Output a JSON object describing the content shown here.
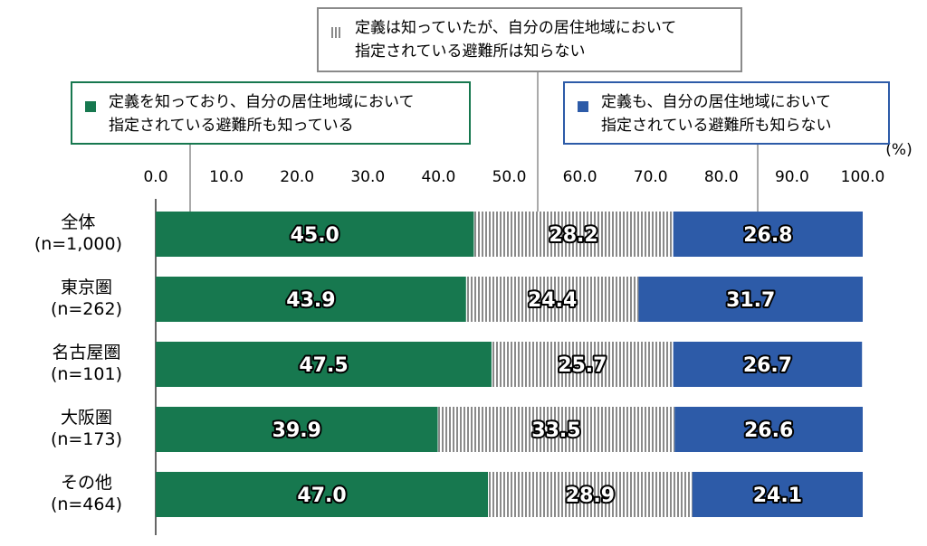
{
  "chart_data": {
    "type": "stacked-bar-horizontal",
    "unit_label": "(%)",
    "categories": [
      "全体\n(n=1,000)",
      "東京圏\n(n=262)",
      "名古屋圏\n(n=101)",
      "大阪圏\n(n=173)",
      "その他\n(n=464)"
    ],
    "series": [
      {
        "name": "定義を知っており、自分の居住地域において\n指定されている避難所も知っている",
        "color": "#17784f",
        "values": [
          45.0,
          43.9,
          47.5,
          39.9,
          47.0
        ],
        "value_labels": [
          "45.0",
          "43.9",
          "47.5",
          "39.9",
          "47.0"
        ]
      },
      {
        "name": "定義は知っていたが、自分の居住地域において\n指定されている避難所は知らない",
        "color": "#8a8a8a",
        "hatch": true,
        "values": [
          28.2,
          24.4,
          25.7,
          33.5,
          28.9
        ],
        "value_labels": [
          "28.2",
          "24.4",
          "25.7",
          "33.5",
          "28.9"
        ]
      },
      {
        "name": "定義も、自分の居住地域において\n指定されている避難所も知らない",
        "color": "#2d5ba8",
        "values": [
          26.8,
          31.7,
          26.7,
          26.6,
          24.1
        ],
        "value_labels": [
          "26.8",
          "31.7",
          "26.7",
          "26.6",
          "24.1"
        ]
      }
    ],
    "xlim": [
      0,
      100
    ],
    "xticks": [
      {
        "value": 0,
        "label": "0.0"
      },
      {
        "value": 10,
        "label": "10.0"
      },
      {
        "value": 20,
        "label": "20.0"
      },
      {
        "value": 30,
        "label": "30.0"
      },
      {
        "value": 40,
        "label": "40.0"
      },
      {
        "value": 50,
        "label": "50.0"
      },
      {
        "value": 60,
        "label": "60.0"
      },
      {
        "value": 70,
        "label": "70.0"
      },
      {
        "value": 80,
        "label": "80.0"
      },
      {
        "value": 90,
        "label": "90.0"
      },
      {
        "value": 100,
        "label": "100.0"
      }
    ]
  }
}
